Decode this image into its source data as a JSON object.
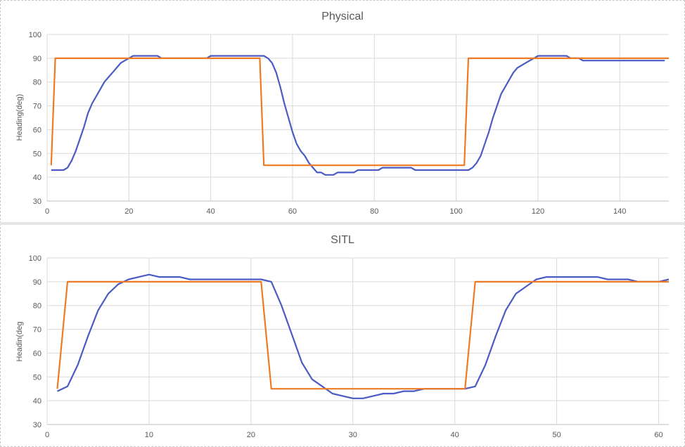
{
  "chart_data": [
    {
      "type": "line",
      "title": "Physical",
      "xlabel": "",
      "ylabel": "Heading(deg)",
      "xlim": [
        0,
        152
      ],
      "ylim": [
        30,
        100
      ],
      "xticks": [
        0,
        20,
        40,
        60,
        80,
        100,
        120,
        140
      ],
      "yticks": [
        30,
        40,
        50,
        60,
        70,
        80,
        90,
        100
      ],
      "grid": true,
      "series": [
        {
          "color": "#4a5bc4",
          "x": [
            1,
            2,
            3,
            4,
            5,
            6,
            7,
            8,
            9,
            10,
            11,
            12,
            13,
            14,
            15,
            16,
            17,
            18,
            19,
            20,
            21,
            22,
            23,
            24,
            25,
            26,
            27,
            28,
            29,
            30,
            35,
            39,
            40,
            45,
            50,
            52,
            53,
            54,
            55,
            56,
            57,
            58,
            59,
            60,
            61,
            62,
            63,
            64,
            65,
            66,
            67,
            68,
            69,
            70,
            71,
            72,
            73,
            74,
            75,
            76,
            80,
            81,
            82,
            85,
            89,
            90,
            95,
            100,
            102,
            103,
            104,
            105,
            106,
            107,
            108,
            109,
            110,
            111,
            112,
            113,
            114,
            115,
            116,
            117,
            118,
            119,
            120,
            121,
            122,
            125,
            127,
            128,
            129,
            130,
            131,
            135,
            140,
            145,
            151
          ],
          "y": [
            43,
            43,
            43,
            43,
            44,
            47,
            51,
            56,
            61,
            67,
            71,
            74,
            77,
            80,
            82,
            84,
            86,
            88,
            89,
            90,
            91,
            91,
            91,
            91,
            91,
            91,
            91,
            90,
            90,
            90,
            90,
            90,
            91,
            91,
            91,
            91,
            91,
            90,
            88,
            84,
            78,
            71,
            65,
            59,
            54,
            51,
            49,
            46,
            44,
            42,
            42,
            41,
            41,
            41,
            42,
            42,
            42,
            42,
            42,
            43,
            43,
            43,
            44,
            44,
            44,
            43,
            43,
            43,
            43,
            43,
            44,
            46,
            49,
            54,
            59,
            65,
            70,
            75,
            78,
            81,
            84,
            86,
            87,
            88,
            89,
            90,
            91,
            91,
            91,
            91,
            91,
            90,
            90,
            90,
            89,
            89,
            89,
            89,
            89
          ]
        },
        {
          "color": "#ef7a22",
          "x": [
            1,
            2,
            52,
            53,
            102,
            103,
            152
          ],
          "y": [
            45,
            90,
            90,
            45,
            45,
            90,
            90
          ]
        }
      ]
    },
    {
      "type": "line",
      "title": "SITL",
      "xlabel": "",
      "ylabel": "Headin(deg",
      "xlim": [
        0,
        61
      ],
      "ylim": [
        30,
        100
      ],
      "xticks": [
        0,
        10,
        20,
        30,
        40,
        50,
        60
      ],
      "yticks": [
        30,
        40,
        50,
        60,
        70,
        80,
        90,
        100
      ],
      "grid": true,
      "series": [
        {
          "color": "#4a5bc4",
          "x": [
            1,
            2,
            3,
            4,
            5,
            6,
            7,
            8,
            9,
            10,
            11,
            12,
            13,
            14,
            15,
            16,
            17,
            18,
            19,
            20,
            21,
            22,
            23,
            24,
            25,
            26,
            27,
            28,
            29,
            30,
            31,
            32,
            33,
            34,
            35,
            36,
            37,
            38,
            39,
            40,
            41,
            42,
            43,
            44,
            45,
            46,
            47,
            48,
            49,
            50,
            51,
            52,
            53,
            54,
            55,
            56,
            57,
            58,
            59,
            60,
            61
          ],
          "y": [
            44,
            46,
            55,
            67,
            78,
            85,
            89,
            91,
            92,
            93,
            92,
            92,
            92,
            91,
            91,
            91,
            91,
            91,
            91,
            91,
            91,
            90,
            80,
            68,
            56,
            49,
            46,
            43,
            42,
            41,
            41,
            42,
            43,
            43,
            44,
            44,
            45,
            45,
            45,
            45,
            45,
            46,
            55,
            67,
            78,
            85,
            88,
            91,
            92,
            92,
            92,
            92,
            92,
            92,
            91,
            91,
            91,
            90,
            90,
            90,
            91
          ]
        },
        {
          "color": "#ef7a22",
          "x": [
            1,
            2,
            21,
            22,
            41,
            42,
            61
          ],
          "y": [
            45,
            90,
            90,
            45,
            45,
            90,
            90
          ]
        }
      ]
    }
  ]
}
